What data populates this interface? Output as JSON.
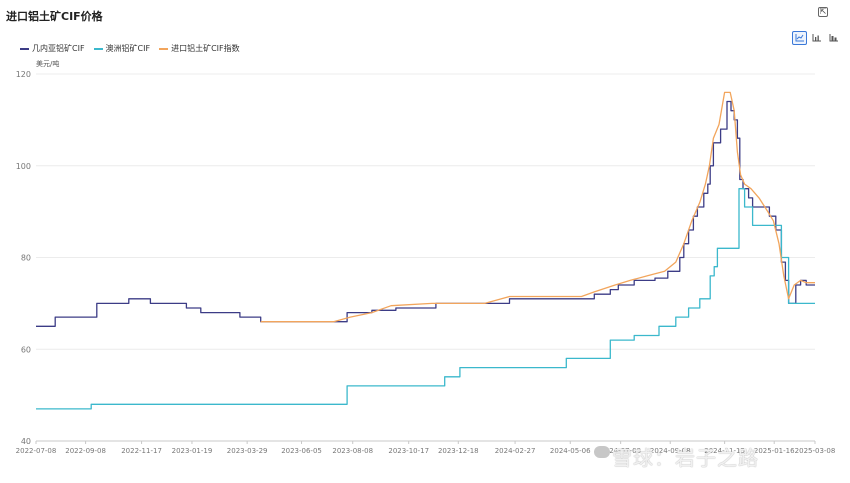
{
  "header": {
    "title": "进口铝土矿CIF价格"
  },
  "toolbar": {
    "buttons": [
      "line-chart",
      "bar-chart",
      "column-chart"
    ],
    "active": "line-chart"
  },
  "watermark": {
    "text": "雪球：岩子之路"
  },
  "chart_data": {
    "type": "line",
    "unit": "美元/吨",
    "ylim": [
      40,
      120
    ],
    "yticks": [
      40,
      60,
      80,
      100,
      120
    ],
    "grid": true,
    "legend_position": "top-left",
    "xlim": [
      "2022-07-08",
      "2025-03-08"
    ],
    "xticks": [
      "2022-07-08",
      "2022-09-08",
      "2022-11-17",
      "2023-01-19",
      "2023-03-29",
      "2023-06-05",
      "2023-08-08",
      "2023-10-17",
      "2023-12-18",
      "2024-02-27",
      "2024-05-06",
      "2024-07-08",
      "2024-09-08",
      "2024-11-15",
      "2025-01-16",
      "2025-03-08"
    ],
    "series": [
      {
        "name": "几内亚铝矿CIF",
        "color": "#3c3c86",
        "step": true,
        "points": [
          [
            "2022-07-08",
            65
          ],
          [
            "2022-08-01",
            67
          ],
          [
            "2022-09-08",
            67
          ],
          [
            "2022-09-22",
            70
          ],
          [
            "2022-10-24",
            70
          ],
          [
            "2022-11-01",
            71
          ],
          [
            "2022-11-28",
            70
          ],
          [
            "2023-01-12",
            69
          ],
          [
            "2023-01-30",
            68
          ],
          [
            "2023-03-20",
            67
          ],
          [
            "2023-04-15",
            66
          ],
          [
            "2023-07-20",
            66
          ],
          [
            "2023-08-01",
            68
          ],
          [
            "2023-09-01",
            68.5
          ],
          [
            "2023-10-01",
            69
          ],
          [
            "2023-11-20",
            70
          ],
          [
            "2024-01-10",
            70
          ],
          [
            "2024-02-20",
            71
          ],
          [
            "2024-05-20",
            71
          ],
          [
            "2024-06-05",
            72
          ],
          [
            "2024-06-25",
            73
          ],
          [
            "2024-07-05",
            74
          ],
          [
            "2024-07-25",
            75
          ],
          [
            "2024-08-20",
            75.5
          ],
          [
            "2024-09-05",
            77
          ],
          [
            "2024-09-20",
            80
          ],
          [
            "2024-09-25",
            83
          ],
          [
            "2024-10-01",
            86
          ],
          [
            "2024-10-07",
            89
          ],
          [
            "2024-10-12",
            91
          ],
          [
            "2024-10-20",
            94
          ],
          [
            "2024-10-25",
            96
          ],
          [
            "2024-10-28",
            100
          ],
          [
            "2024-11-01",
            105
          ],
          [
            "2024-11-10",
            108
          ],
          [
            "2024-11-18",
            114
          ],
          [
            "2024-11-23",
            112
          ],
          [
            "2024-11-27",
            110
          ],
          [
            "2024-12-01",
            106
          ],
          [
            "2024-12-04",
            97
          ],
          [
            "2024-12-08",
            95
          ],
          [
            "2024-12-15",
            93
          ],
          [
            "2024-12-20",
            91
          ],
          [
            "2025-01-05",
            91
          ],
          [
            "2025-01-10",
            89
          ],
          [
            "2025-01-18",
            86
          ],
          [
            "2025-01-25",
            79
          ],
          [
            "2025-01-30",
            75
          ],
          [
            "2025-02-03",
            70
          ],
          [
            "2025-02-12",
            74
          ],
          [
            "2025-02-18",
            75
          ],
          [
            "2025-02-25",
            74
          ],
          [
            "2025-03-08",
            74
          ]
        ]
      },
      {
        "name": "澳洲铝矿CIF",
        "color": "#3bb8cc",
        "step": true,
        "points": [
          [
            "2022-07-08",
            47
          ],
          [
            "2022-09-15",
            48
          ],
          [
            "2023-08-01",
            52
          ],
          [
            "2023-12-01",
            54
          ],
          [
            "2023-12-20",
            56
          ],
          [
            "2024-02-15",
            56
          ],
          [
            "2024-05-01",
            58
          ],
          [
            "2024-06-25",
            62
          ],
          [
            "2024-07-25",
            63
          ],
          [
            "2024-08-25",
            65
          ],
          [
            "2024-09-15",
            67
          ],
          [
            "2024-10-01",
            69
          ],
          [
            "2024-10-15",
            71
          ],
          [
            "2024-10-28",
            76
          ],
          [
            "2024-11-02",
            78
          ],
          [
            "2024-11-06",
            82
          ],
          [
            "2024-11-28",
            82
          ],
          [
            "2024-12-03",
            95
          ],
          [
            "2024-12-10",
            91
          ],
          [
            "2024-12-20",
            87
          ],
          [
            "2025-01-15",
            87
          ],
          [
            "2025-01-25",
            80
          ],
          [
            "2025-02-03",
            70
          ],
          [
            "2025-03-08",
            70
          ]
        ]
      },
      {
        "name": "进口铝土矿CIF指数",
        "color": "#f2a55c",
        "step": false,
        "points": [
          [
            "2023-04-15",
            66
          ],
          [
            "2023-07-15",
            66
          ],
          [
            "2023-08-05",
            67
          ],
          [
            "2023-09-01",
            68
          ],
          [
            "2023-09-25",
            69.5
          ],
          [
            "2023-11-15",
            70
          ],
          [
            "2024-01-20",
            70
          ],
          [
            "2024-02-20",
            71.5
          ],
          [
            "2024-05-20",
            71.5
          ],
          [
            "2024-06-05",
            72.5
          ],
          [
            "2024-07-01",
            74
          ],
          [
            "2024-07-20",
            75
          ],
          [
            "2024-08-10",
            76
          ],
          [
            "2024-09-01",
            77
          ],
          [
            "2024-09-15",
            79
          ],
          [
            "2024-09-25",
            83
          ],
          [
            "2024-10-05",
            88
          ],
          [
            "2024-10-15",
            92
          ],
          [
            "2024-10-22",
            96
          ],
          [
            "2024-10-27",
            100
          ],
          [
            "2024-11-01",
            106
          ],
          [
            "2024-11-08",
            109
          ],
          [
            "2024-11-15",
            116
          ],
          [
            "2024-11-22",
            116
          ],
          [
            "2024-11-27",
            112
          ],
          [
            "2024-12-01",
            103
          ],
          [
            "2024-12-05",
            98
          ],
          [
            "2024-12-10",
            96
          ],
          [
            "2024-12-18",
            95
          ],
          [
            "2024-12-28",
            93
          ],
          [
            "2025-01-08",
            90
          ],
          [
            "2025-01-15",
            88
          ],
          [
            "2025-01-22",
            83
          ],
          [
            "2025-01-28",
            76
          ],
          [
            "2025-02-03",
            71
          ],
          [
            "2025-02-10",
            74
          ],
          [
            "2025-02-18",
            75
          ],
          [
            "2025-02-25",
            74.5
          ],
          [
            "2025-03-08",
            74.5
          ]
        ]
      }
    ]
  }
}
